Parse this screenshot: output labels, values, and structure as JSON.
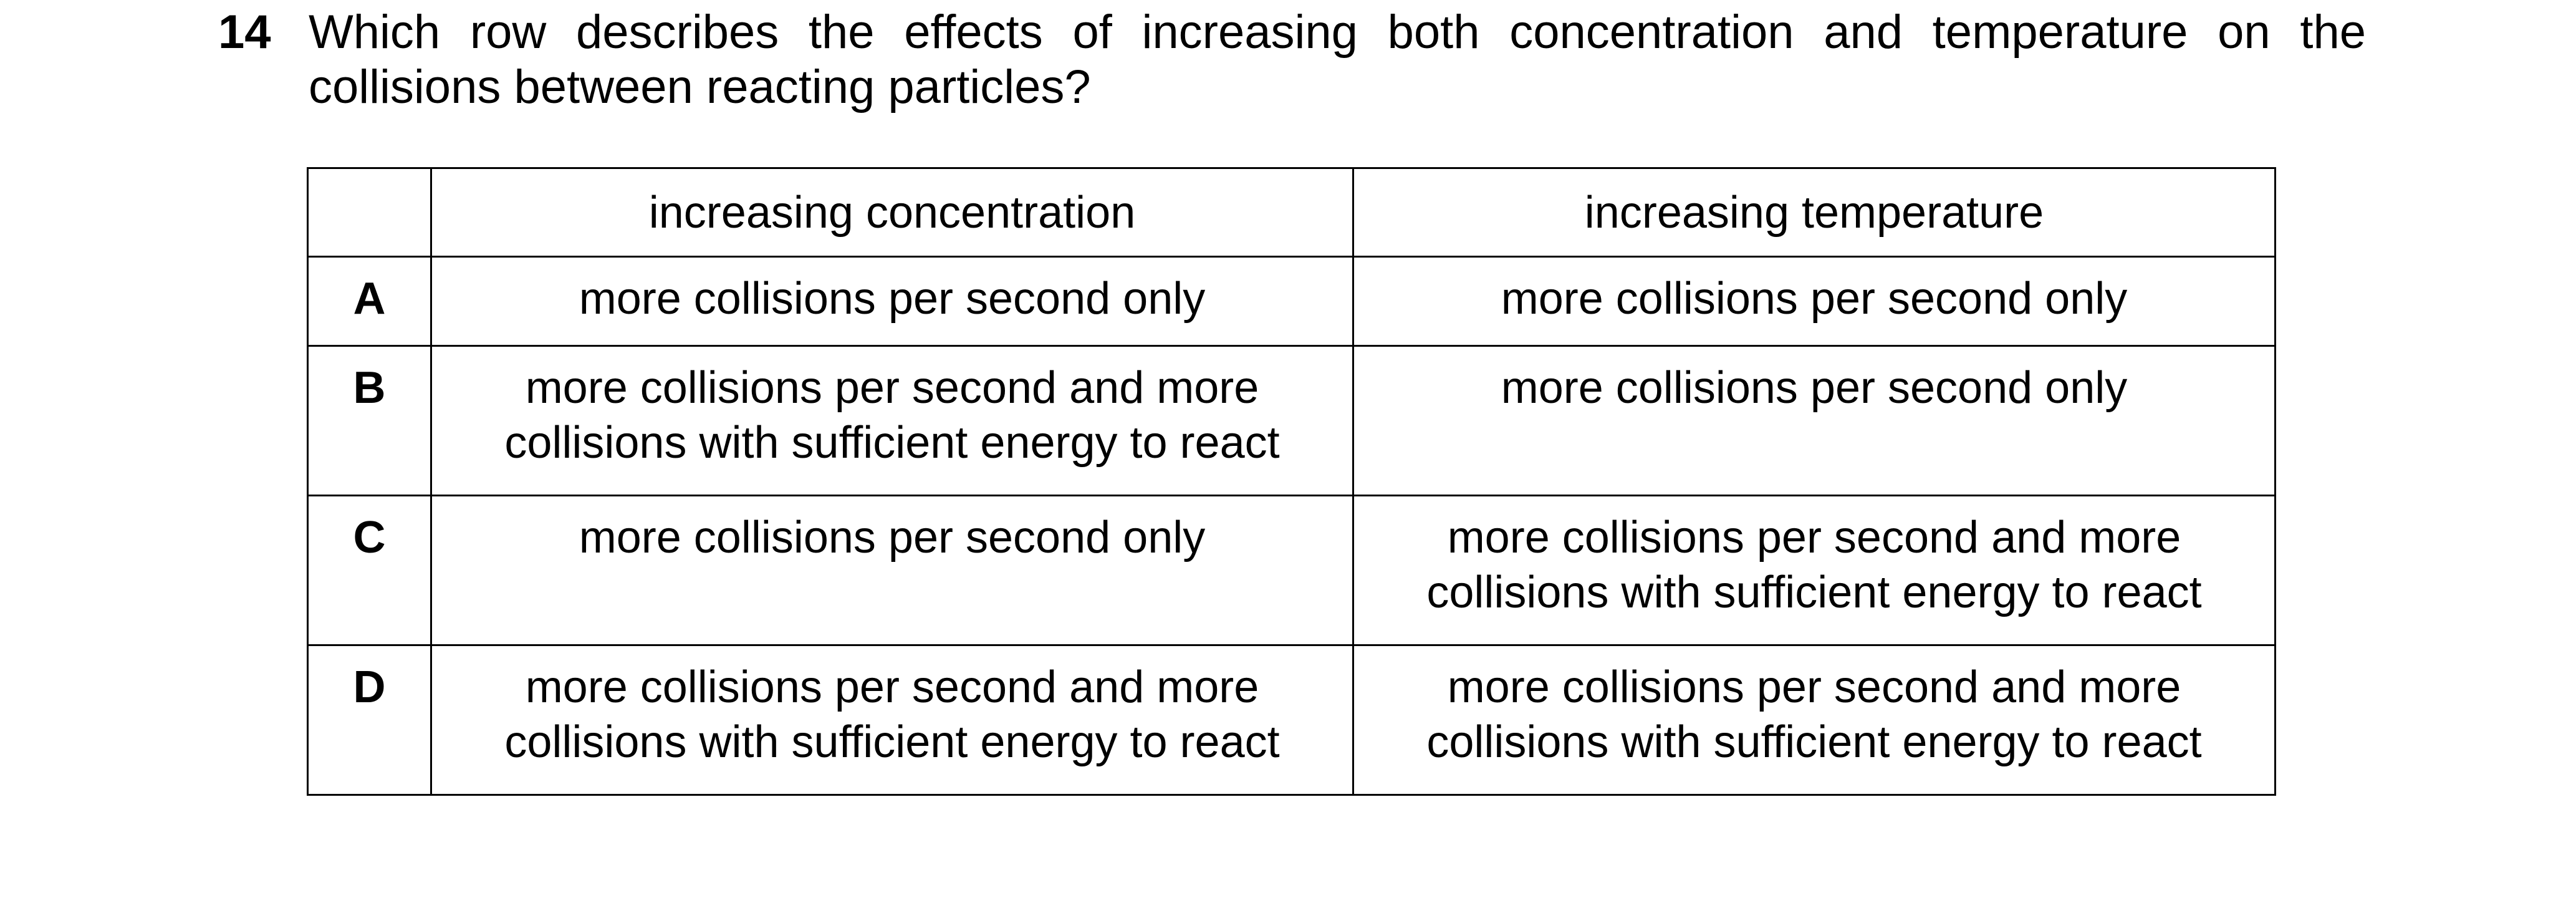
{
  "question": {
    "number": "14",
    "text": "Which row describes the effects of increasing both concentration and temperature on the collisions between reacting particles?"
  },
  "table": {
    "headers": [
      "",
      "increasing concentration",
      "increasing temperature"
    ],
    "rows": [
      {
        "letter": "A",
        "concentration": "more collisions per second only",
        "temperature": "more collisions per second only"
      },
      {
        "letter": "B",
        "concentration": "more collisions per second and more collisions with sufficient energy to react",
        "temperature": "more collisions per second only"
      },
      {
        "letter": "C",
        "concentration": "more collisions per second only",
        "temperature": "more collisions per second and more collisions with sufficient energy to react"
      },
      {
        "letter": "D",
        "concentration": "more collisions per second and more collisions with sufficient energy to react",
        "temperature": "more collisions per second and more collisions with sufficient energy to react"
      }
    ]
  }
}
